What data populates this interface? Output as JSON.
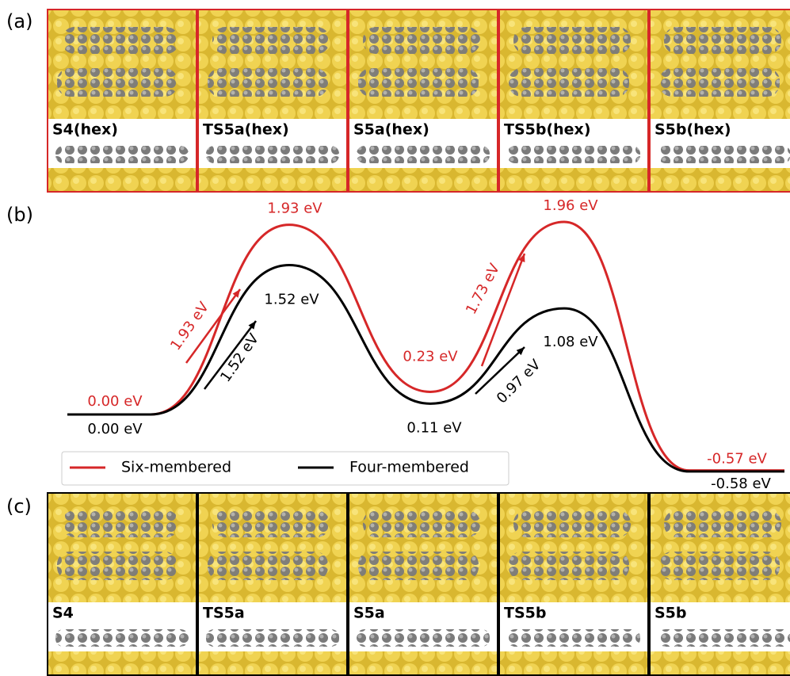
{
  "panel_a": {
    "label": "(a)",
    "frames": [
      "S4(hex)",
      "TS5a(hex)",
      "S5a(hex)",
      "TS5b(hex)",
      "S5b(hex)"
    ],
    "border": "#d62728"
  },
  "panel_c": {
    "label": "(c)",
    "frames": [
      "S4",
      "TS5a",
      "S5a",
      "TS5b",
      "S5b"
    ],
    "border": "#000000"
  },
  "chart_data": {
    "type": "line",
    "label": "(b)",
    "legend": "bottom-left",
    "series": [
      {
        "name": "Six-membered",
        "color": "#d62728",
        "values": [
          0.0,
          1.93,
          0.23,
          1.96,
          -0.57
        ],
        "value_labels": [
          "0.00 eV",
          "1.93 eV",
          "0.23 eV",
          "1.96 eV",
          "-0.57 eV"
        ],
        "barriers": [
          {
            "value": 1.93,
            "label": "1.93 eV"
          },
          {
            "value": 1.73,
            "label": "1.73 eV"
          }
        ]
      },
      {
        "name": "Four-membered",
        "color": "#000000",
        "values": [
          0.0,
          1.52,
          0.11,
          1.08,
          -0.58
        ],
        "value_labels": [
          "0.00 eV",
          "1.52 eV",
          "0.11 eV",
          "1.08 eV",
          "-0.58 eV"
        ],
        "barriers": [
          {
            "value": 1.52,
            "label": "1.52 eV"
          },
          {
            "value": 0.97,
            "label": "0.97 eV"
          }
        ]
      }
    ]
  }
}
